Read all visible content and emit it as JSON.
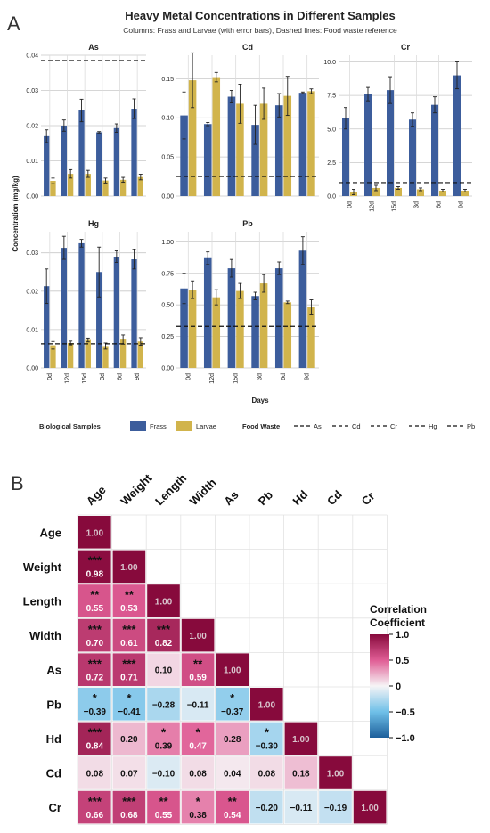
{
  "panel_a": {
    "letter": "A",
    "title": "Heavy Metal Concentrations in Different Samples",
    "subtitle": "Columns: Frass and Larvae (with error bars), Dashed lines: Food waste reference",
    "ylabel": "Concentration (mg/kg)",
    "xlabel": "Days",
    "legend": {
      "bio_title": "Biological Samples",
      "frass": "Frass",
      "larvae": "Larvae",
      "food_title": "Food Waste",
      "metals": [
        "As",
        "Cd",
        "Cr",
        "Hg",
        "Pb"
      ]
    },
    "colors": {
      "frass": "#3c5d9c",
      "larvae": "#d1b44c"
    }
  },
  "panel_b": {
    "letter": "B",
    "colorbar_title_1": "Correlation",
    "colorbar_title_2": "Coefficient",
    "colorbar_ticks": [
      "1.0",
      "0.5",
      "0",
      "−0.5",
      "−1.0"
    ],
    "colors": {
      "pos": "#870a3c",
      "neg": "#1d5f9b"
    }
  },
  "chart_data": [
    {
      "type": "bar",
      "panel": "As",
      "categories": [
        "0d",
        "12d",
        "15d",
        "3d",
        "6d",
        "9d"
      ],
      "series": [
        {
          "name": "Frass",
          "values": [
            0.017,
            0.02,
            0.0243,
            0.0181,
            0.0193,
            0.0248
          ],
          "errors": [
            0.0018,
            0.0016,
            0.0032,
            0.0002,
            0.0012,
            0.0028
          ]
        },
        {
          "name": "Larvae",
          "values": [
            0.0043,
            0.0063,
            0.0063,
            0.0044,
            0.0046,
            0.0054
          ],
          "errors": [
            0.0008,
            0.0012,
            0.001,
            0.0007,
            0.0007,
            0.0008
          ]
        }
      ],
      "reference": 0.0385,
      "ylim": [
        0,
        0.04
      ],
      "yticks": [
        0.0,
        0.01,
        0.02,
        0.03,
        0.04
      ],
      "decimals": 2
    },
    {
      "type": "bar",
      "panel": "Cd",
      "categories": [
        "0d",
        "12d",
        "15d",
        "3d",
        "6d",
        "9d"
      ],
      "series": [
        {
          "name": "Frass",
          "values": [
            0.103,
            0.092,
            0.127,
            0.091,
            0.116,
            0.132
          ],
          "errors": [
            0.03,
            0.002,
            0.008,
            0.025,
            0.015,
            0.001
          ]
        },
        {
          "name": "Larvae",
          "values": [
            0.148,
            0.152,
            0.118,
            0.118,
            0.128,
            0.134
          ],
          "errors": [
            0.035,
            0.006,
            0.025,
            0.02,
            0.025,
            0.003
          ]
        }
      ],
      "reference": 0.025,
      "ylim": [
        0,
        0.18
      ],
      "yticks": [
        0.0,
        0.05,
        0.1,
        0.15
      ],
      "decimals": 2
    },
    {
      "type": "bar",
      "panel": "Cr",
      "categories": [
        "0d",
        "12d",
        "15d",
        "3d",
        "6d",
        "9d"
      ],
      "series": [
        {
          "name": "Frass",
          "values": [
            5.8,
            7.6,
            7.9,
            5.7,
            6.8,
            9.0
          ],
          "errors": [
            0.8,
            0.5,
            1.0,
            0.5,
            0.6,
            1.0
          ]
        },
        {
          "name": "Larvae",
          "values": [
            0.3,
            0.6,
            0.6,
            0.5,
            0.4,
            0.4
          ],
          "errors": [
            0.2,
            0.2,
            0.1,
            0.1,
            0.1,
            0.1
          ]
        }
      ],
      "reference": 1.0,
      "ylim": [
        0,
        10.5
      ],
      "yticks": [
        0.0,
        2.5,
        5.0,
        7.5,
        10.0
      ],
      "decimals": 1
    },
    {
      "type": "bar",
      "panel": "Hg",
      "categories": [
        "0d",
        "12d",
        "15d",
        "3d",
        "6d",
        "9d"
      ],
      "series": [
        {
          "name": "Frass",
          "values": [
            0.0213,
            0.0313,
            0.0325,
            0.025,
            0.029,
            0.0283
          ],
          "errors": [
            0.0045,
            0.003,
            0.001,
            0.0065,
            0.0015,
            0.0025
          ]
        },
        {
          "name": "Larvae",
          "values": [
            0.0059,
            0.0065,
            0.0073,
            0.0057,
            0.0074,
            0.0069
          ],
          "errors": [
            0.001,
            0.0005,
            0.0005,
            0.0008,
            0.0012,
            0.001
          ]
        }
      ],
      "reference": 0.0063,
      "ylim": [
        0,
        0.0355
      ],
      "yticks": [
        0.0,
        0.01,
        0.02,
        0.03
      ],
      "decimals": 2
    },
    {
      "type": "bar",
      "panel": "Pb",
      "categories": [
        "0d",
        "12d",
        "15d",
        "3d",
        "6d",
        "9d"
      ],
      "series": [
        {
          "name": "Frass",
          "values": [
            0.63,
            0.87,
            0.79,
            0.57,
            0.79,
            0.93
          ],
          "errors": [
            0.12,
            0.05,
            0.07,
            0.03,
            0.05,
            0.11
          ]
        },
        {
          "name": "Larvae",
          "values": [
            0.62,
            0.56,
            0.61,
            0.67,
            0.52,
            0.48
          ],
          "errors": [
            0.07,
            0.06,
            0.06,
            0.07,
            0.01,
            0.06
          ]
        }
      ],
      "reference": 0.33,
      "ylim": [
        0,
        1.08
      ],
      "yticks": [
        0.0,
        0.25,
        0.5,
        0.75,
        1.0
      ],
      "decimals": 2
    },
    {
      "type": "heatmap",
      "panel": "B",
      "variables": [
        "Age",
        "Weight",
        "Length",
        "Width",
        "As",
        "Pb",
        "Hd",
        "Cd",
        "Cr"
      ],
      "cells": [
        {
          "r": 0,
          "c": 0,
          "v": 1.0,
          "t": "1.00",
          "s": ""
        },
        {
          "r": 1,
          "c": 0,
          "v": 0.98,
          "t": "0.98",
          "s": "***"
        },
        {
          "r": 1,
          "c": 1,
          "v": 1.0,
          "t": "1.00",
          "s": ""
        },
        {
          "r": 2,
          "c": 0,
          "v": 0.55,
          "t": "0.55",
          "s": "**"
        },
        {
          "r": 2,
          "c": 1,
          "v": 0.53,
          "t": "0.53",
          "s": "**"
        },
        {
          "r": 2,
          "c": 2,
          "v": 1.0,
          "t": "1.00",
          "s": ""
        },
        {
          "r": 3,
          "c": 0,
          "v": 0.7,
          "t": "0.70",
          "s": "***"
        },
        {
          "r": 3,
          "c": 1,
          "v": 0.61,
          "t": "0.61",
          "s": "***"
        },
        {
          "r": 3,
          "c": 2,
          "v": 0.82,
          "t": "0.82",
          "s": "***"
        },
        {
          "r": 3,
          "c": 3,
          "v": 1.0,
          "t": "1.00",
          "s": ""
        },
        {
          "r": 4,
          "c": 0,
          "v": 0.72,
          "t": "0.72",
          "s": "***"
        },
        {
          "r": 4,
          "c": 1,
          "v": 0.71,
          "t": "0.71",
          "s": "***"
        },
        {
          "r": 4,
          "c": 2,
          "v": 0.1,
          "t": "0.10",
          "s": ""
        },
        {
          "r": 4,
          "c": 3,
          "v": 0.59,
          "t": "0.59",
          "s": "**"
        },
        {
          "r": 4,
          "c": 4,
          "v": 1.0,
          "t": "1.00",
          "s": ""
        },
        {
          "r": 5,
          "c": 0,
          "v": -0.39,
          "t": "−0.39",
          "s": "*"
        },
        {
          "r": 5,
          "c": 1,
          "v": -0.41,
          "t": "−0.41",
          "s": "*"
        },
        {
          "r": 5,
          "c": 2,
          "v": -0.28,
          "t": "−0.28",
          "s": ""
        },
        {
          "r": 5,
          "c": 3,
          "v": -0.11,
          "t": "−0.11",
          "s": ""
        },
        {
          "r": 5,
          "c": 4,
          "v": -0.37,
          "t": "−0.37",
          "s": "*"
        },
        {
          "r": 5,
          "c": 5,
          "v": 1.0,
          "t": "1.00",
          "s": ""
        },
        {
          "r": 6,
          "c": 0,
          "v": 0.84,
          "t": "0.84",
          "s": "***"
        },
        {
          "r": 6,
          "c": 1,
          "v": 0.2,
          "t": "0.20",
          "s": ""
        },
        {
          "r": 6,
          "c": 2,
          "v": 0.39,
          "t": "0.39",
          "s": "*"
        },
        {
          "r": 6,
          "c": 3,
          "v": 0.47,
          "t": "0.47",
          "s": "*"
        },
        {
          "r": 6,
          "c": 4,
          "v": 0.28,
          "t": "0.28",
          "s": ""
        },
        {
          "r": 6,
          "c": 5,
          "v": -0.3,
          "t": "−0.30",
          "s": "*"
        },
        {
          "r": 6,
          "c": 6,
          "v": 1.0,
          "t": "1.00",
          "s": ""
        },
        {
          "r": 7,
          "c": 0,
          "v": 0.08,
          "t": "0.08",
          "s": ""
        },
        {
          "r": 7,
          "c": 1,
          "v": 0.07,
          "t": "0.07",
          "s": ""
        },
        {
          "r": 7,
          "c": 2,
          "v": -0.1,
          "t": "−0.10",
          "s": ""
        },
        {
          "r": 7,
          "c": 3,
          "v": 0.08,
          "t": "0.08",
          "s": ""
        },
        {
          "r": 7,
          "c": 4,
          "v": 0.04,
          "t": "0.04",
          "s": ""
        },
        {
          "r": 7,
          "c": 5,
          "v": 0.08,
          "t": "0.08",
          "s": ""
        },
        {
          "r": 7,
          "c": 6,
          "v": 0.18,
          "t": "0.18",
          "s": ""
        },
        {
          "r": 7,
          "c": 7,
          "v": 1.0,
          "t": "1.00",
          "s": ""
        },
        {
          "r": 8,
          "c": 0,
          "v": 0.66,
          "t": "0.66",
          "s": "***"
        },
        {
          "r": 8,
          "c": 1,
          "v": 0.68,
          "t": "0.68",
          "s": "***"
        },
        {
          "r": 8,
          "c": 2,
          "v": 0.55,
          "t": "0.55",
          "s": "**"
        },
        {
          "r": 8,
          "c": 3,
          "v": 0.38,
          "t": "0.38",
          "s": "*"
        },
        {
          "r": 8,
          "c": 4,
          "v": 0.54,
          "t": "0.54",
          "s": "**"
        },
        {
          "r": 8,
          "c": 5,
          "v": -0.2,
          "t": "−0.20",
          "s": ""
        },
        {
          "r": 8,
          "c": 6,
          "v": -0.11,
          "t": "−0.11",
          "s": ""
        },
        {
          "r": 8,
          "c": 7,
          "v": -0.19,
          "t": "−0.19",
          "s": ""
        },
        {
          "r": 8,
          "c": 8,
          "v": 1.0,
          "t": "1.00",
          "s": ""
        }
      ]
    }
  ]
}
